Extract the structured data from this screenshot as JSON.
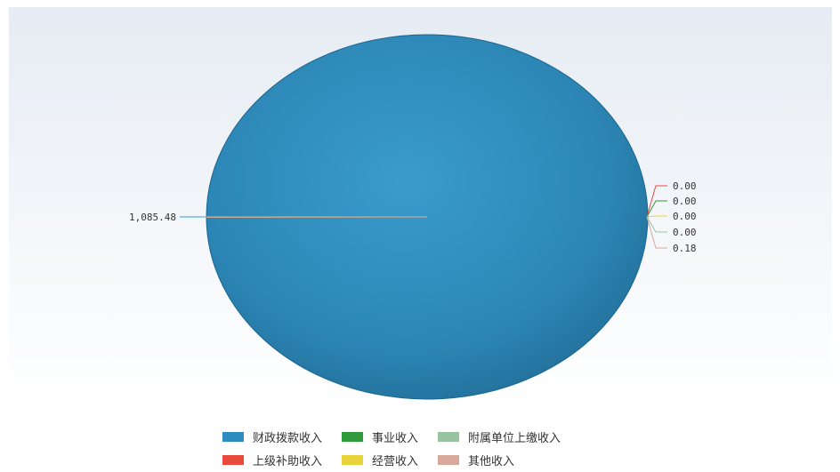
{
  "chart_data": {
    "type": "pie",
    "categories": [
      "财政拨款收入",
      "上级补助收入",
      "事业收入",
      "经营收入",
      "附属单位上缴收入",
      "其他收入"
    ],
    "values": [
      1085.48,
      0.0,
      0.0,
      0.0,
      0.0,
      0.18
    ],
    "value_labels": [
      "1,085.48",
      "0.00",
      "0.00",
      "0.00",
      "0.00",
      "0.18"
    ],
    "colors": [
      "#2e8bbf",
      "#e84a3c",
      "#2e9a3c",
      "#e8d23a",
      "#98c3a0",
      "#d8a89a"
    ],
    "legend_placement": "bottom",
    "legend_rows": [
      [
        0,
        2,
        4
      ],
      [
        1,
        3,
        5
      ]
    ],
    "title": "",
    "xlabel": "",
    "ylabel": ""
  }
}
